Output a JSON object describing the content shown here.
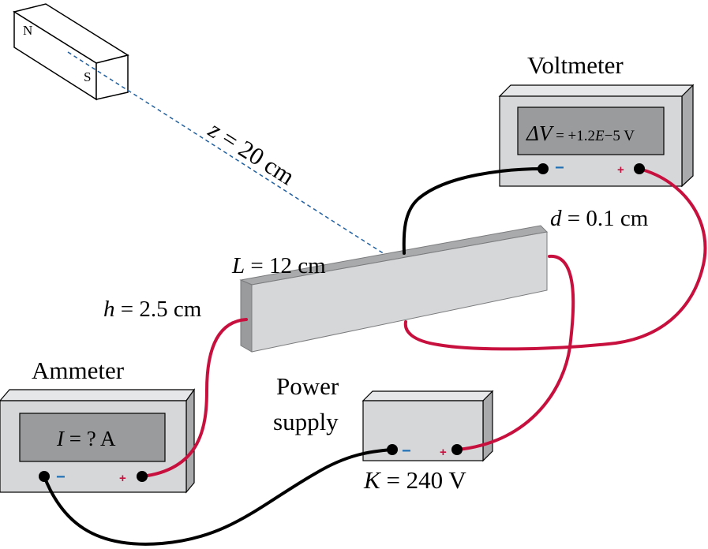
{
  "magnet": {
    "north_label": "N",
    "south_label": "S"
  },
  "distance_label": {
    "var": "z",
    "text": " = 20 cm"
  },
  "bar": {
    "length_label": {
      "var": "L",
      "text": " = 12 cm"
    },
    "height_label": {
      "var": "h",
      "text": " = 2.5 cm"
    },
    "thickness_label": {
      "var": "d",
      "text": " = 0.1 cm"
    }
  },
  "voltmeter": {
    "title": "Voltmeter",
    "display": {
      "var": "ΔV",
      "text": " = +1.2",
      "exp_var": "E",
      "exp_text": "−5 V"
    },
    "minus": "−",
    "plus": "+"
  },
  "ammeter": {
    "title": "Ammeter",
    "display": {
      "var": "I",
      "text": " = ? A"
    },
    "minus": "−",
    "plus": "+"
  },
  "power_supply": {
    "title_line1": "Power",
    "title_line2": "supply",
    "voltage": {
      "var": "K",
      "text": " = 240 V"
    },
    "minus": "−",
    "plus": "+"
  },
  "colors": {
    "wire_red": "#c8103e",
    "wire_black": "#000000",
    "dashed_line": "#2060a0",
    "meter_body": "#d6d7d9",
    "display": "#9a9b9d",
    "minus_sign": "#1f6fb5",
    "plus_sign": "#c8103e"
  }
}
